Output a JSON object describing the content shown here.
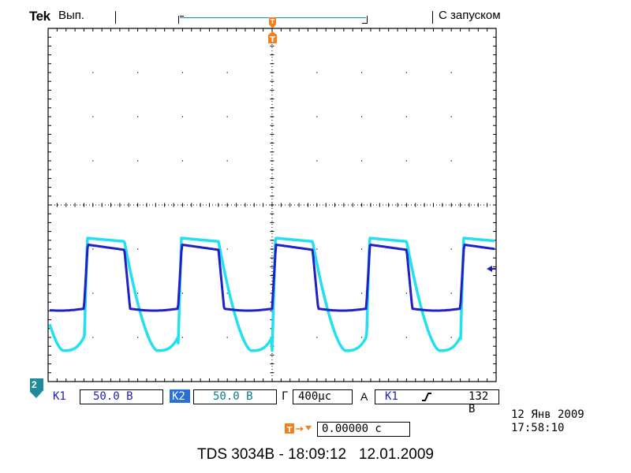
{
  "header": {
    "brand": "Tek",
    "run_state": "Вып.",
    "trigger_state": "С запуском"
  },
  "colors": {
    "ch1": "#2020c8",
    "ch2": "#22e0f0",
    "grid": "#000000",
    "trigger_marker": "#f08020",
    "ch1_badge": "#1f1fb5",
    "ch2_badge": "#2a6fd6"
  },
  "channels": [
    {
      "id": "ch1",
      "label": "К1",
      "scale": "50.0 В"
    },
    {
      "id": "ch2",
      "label": "К2",
      "scale": "50.0 В"
    }
  ],
  "ground_marker": "2",
  "timebase": {
    "label": "Г",
    "value": "400μс"
  },
  "trigger": {
    "mode_label": "А",
    "source": "К1",
    "slope_icon": "rising-edge-icon",
    "level": "132 В",
    "position_value": "0.00000 с"
  },
  "datetime": {
    "date": "12 Янв 2009",
    "time": "17:58:10"
  },
  "footer": "TDS 3034B - 18:09:12   12.01.2009",
  "waveform": {
    "period_div": 2.1,
    "ch1": {
      "high_div": -0.9,
      "low_div": -2.35
    },
    "ch2": {
      "high_div": -0.75,
      "low_div": -3.3
    }
  }
}
